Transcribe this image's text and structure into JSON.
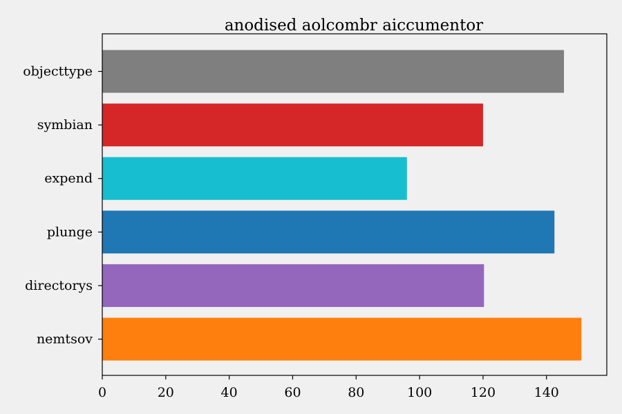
{
  "chart_data": {
    "type": "bar",
    "orientation": "horizontal",
    "title": "anodised aolcombr aiccumentor",
    "xlabel": "",
    "ylabel": "",
    "categories": [
      "objecttype",
      "symbian",
      "expend",
      "plunge",
      "directorys",
      "nemtsov"
    ],
    "values": [
      145.5,
      120,
      96,
      142.5,
      120.3,
      151
    ],
    "colors": [
      "#7f7f7f",
      "#d62728",
      "#17becf",
      "#1f77b4",
      "#9467bd",
      "#ff7f0e"
    ],
    "xlim": [
      0,
      159
    ],
    "xticks": [
      0,
      20,
      40,
      60,
      80,
      100,
      120,
      140
    ],
    "grid": false,
    "legend": "none"
  }
}
